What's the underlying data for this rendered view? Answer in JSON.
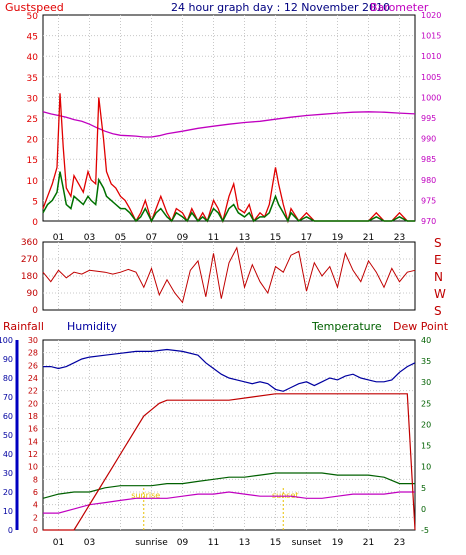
{
  "colors": {
    "background": "#ffffff",
    "frame": "#000000",
    "grid": "#c8c8c8",
    "gust": "#e00000",
    "wind_avg": "#007000",
    "wind_speed": "#0000c0",
    "barometer": "#c000c0",
    "direction": "#c00000",
    "rainfall": "#c00000",
    "humidity": "#0000a0",
    "temperature": "#006000",
    "dewpoint": "#c000c0",
    "sun": "#e8c000",
    "title": "#000080"
  },
  "chart_data": [
    {
      "type": "line",
      "title": "24 hour graph day : 12 November 2010",
      "left_label": "Gustspeed",
      "right_label": "Barometer",
      "x_ticks": [
        "01",
        "03",
        "05",
        "07",
        "09",
        "11",
        "13",
        "15",
        "17",
        "19",
        "21",
        "23"
      ],
      "left_ticks": [
        "0",
        "5",
        "10",
        "15",
        "20",
        "25",
        "30",
        "35",
        "40",
        "45",
        "50"
      ],
      "right_ticks": [
        "970",
        "975",
        "980",
        "985",
        "990",
        "995",
        "1000",
        "1005",
        "1010",
        "1015",
        "1020"
      ],
      "ylim_left": [
        0,
        50
      ],
      "ylim_right": [
        970,
        1020
      ],
      "grid": true,
      "barometer": {
        "x": [
          0,
          0.5,
          1,
          1.5,
          2,
          2.5,
          3,
          3.5,
          4,
          4.5,
          5,
          5.5,
          6,
          6.5,
          7,
          7.5,
          8,
          9,
          10,
          11,
          12,
          13,
          14,
          15,
          16,
          17,
          18,
          19,
          20,
          21,
          22,
          23,
          24
        ],
        "values": [
          996.5,
          996,
          995.6,
          995.2,
          994.6,
          994.2,
          993.5,
          992.6,
          991.8,
          991.2,
          990.8,
          990.7,
          990.6,
          990.4,
          990.4,
          990.7,
          991.2,
          991.8,
          992.5,
          993,
          993.5,
          993.9,
          994.2,
          994.7,
          995.2,
          995.6,
          995.9,
          996.2,
          996.4,
          996.5,
          996.4,
          996.2,
          996
        ]
      },
      "gust": {
        "x": [
          0,
          0.3,
          0.6,
          0.9,
          1.1,
          1.3,
          1.5,
          1.8,
          2,
          2.3,
          2.6,
          2.9,
          3.1,
          3.4,
          3.6,
          3.9,
          4.1,
          4.4,
          4.7,
          5,
          5.3,
          5.6,
          6,
          6.3,
          6.6,
          7,
          7.3,
          7.6,
          8,
          8.3,
          8.6,
          9,
          9.3,
          9.6,
          10,
          10.3,
          10.6,
          11,
          11.3,
          11.6,
          12,
          12.3,
          12.6,
          13,
          13.3,
          13.6,
          14,
          14.3,
          14.6,
          15,
          15.2,
          15.5,
          15.8,
          16,
          16.5,
          17,
          17.5,
          18,
          18.5,
          19,
          19.5,
          20,
          20.5,
          21,
          21.5,
          22,
          22.5,
          23,
          23.5,
          24
        ],
        "values": [
          3,
          6,
          9,
          13,
          31,
          18,
          8,
          6,
          11,
          9,
          7,
          12,
          10,
          9,
          30,
          20,
          12,
          9,
          8,
          6,
          5,
          3,
          0,
          2,
          5,
          0,
          3,
          6,
          2,
          0,
          3,
          2,
          0,
          3,
          0,
          2,
          0,
          5,
          3,
          0,
          6,
          9,
          3,
          2,
          4,
          0,
          2,
          1,
          4,
          13,
          9,
          4,
          0,
          3,
          0,
          2,
          0,
          0,
          0,
          0,
          0,
          0,
          0,
          0,
          2,
          0,
          0,
          2,
          0,
          0
        ]
      },
      "wind_avg": {
        "x": [
          0,
          0.3,
          0.6,
          0.9,
          1.1,
          1.3,
          1.5,
          1.8,
          2,
          2.3,
          2.6,
          2.9,
          3.1,
          3.4,
          3.6,
          3.9,
          4.1,
          4.4,
          4.7,
          5,
          5.3,
          5.6,
          6,
          6.3,
          6.6,
          7,
          7.3,
          7.6,
          8,
          8.3,
          8.6,
          9,
          9.3,
          9.6,
          10,
          10.3,
          10.6,
          11,
          11.3,
          11.6,
          12,
          12.3,
          12.6,
          13,
          13.3,
          13.6,
          14,
          14.3,
          14.6,
          15,
          15.2,
          15.5,
          15.8,
          16,
          16.5,
          17,
          17.5,
          18,
          18.5,
          19,
          19.5,
          20,
          20.5,
          21,
          21.5,
          22,
          22.5,
          23,
          23.5,
          24
        ],
        "values": [
          2,
          4,
          5,
          7,
          12,
          8,
          4,
          3,
          6,
          5,
          4,
          6,
          5,
          4,
          10,
          8,
          6,
          5,
          4,
          3,
          3,
          2,
          0,
          1,
          3,
          0,
          2,
          3,
          1,
          0,
          2,
          1,
          0,
          2,
          0,
          1,
          0,
          3,
          2,
          0,
          3,
          4,
          2,
          1,
          2,
          0,
          1,
          1,
          2,
          6,
          4,
          2,
          0,
          2,
          0,
          1,
          0,
          0,
          0,
          0,
          0,
          0,
          0,
          0,
          1,
          0,
          0,
          1,
          0,
          0
        ]
      }
    },
    {
      "type": "line",
      "right_ticks": [
        "360",
        "270",
        "180",
        "90",
        "0"
      ],
      "right_letters": [
        "S",
        "E",
        "N",
        "W",
        "S"
      ],
      "ylim": [
        0,
        360
      ],
      "grid": true,
      "direction": {
        "x": [
          0,
          0.5,
          1,
          1.5,
          2,
          2.5,
          3,
          3.5,
          4,
          4.5,
          5,
          5.5,
          6,
          6.5,
          7,
          7.5,
          8,
          8.5,
          9,
          9.5,
          10,
          10.5,
          11,
          11.5,
          12,
          12.5,
          13,
          13.5,
          14,
          14.5,
          15,
          15.5,
          16,
          16.5,
          17,
          17.5,
          18,
          18.5,
          19,
          19.5,
          20,
          20.5,
          21,
          21.5,
          22,
          22.5,
          23,
          23.5,
          24
        ],
        "values": [
          200,
          150,
          210,
          170,
          200,
          190,
          210,
          205,
          200,
          190,
          200,
          215,
          200,
          120,
          220,
          80,
          160,
          90,
          40,
          210,
          260,
          70,
          300,
          60,
          250,
          330,
          120,
          240,
          150,
          90,
          230,
          200,
          290,
          310,
          100,
          250,
          180,
          230,
          120,
          300,
          210,
          150,
          260,
          200,
          120,
          220,
          150,
          200,
          210
        ]
      }
    },
    {
      "type": "line",
      "left_labels": [
        "Rainfall",
        "Humidity"
      ],
      "right_labels": [
        "Temperature",
        "Dew Point"
      ],
      "x_ticks": [
        "01",
        "03",
        "sunrise",
        "09",
        "11",
        "13",
        "15",
        "sunset",
        "19",
        "21",
        "23"
      ],
      "humidity_ticks": [
        "0",
        "10",
        "20",
        "30",
        "40",
        "50",
        "60",
        "70",
        "80",
        "90",
        "100"
      ],
      "rain_ticks": [
        "0",
        "2",
        "4",
        "6",
        "8",
        "10",
        "12",
        "14",
        "16",
        "18",
        "20",
        "22",
        "24",
        "26",
        "28",
        "30"
      ],
      "temp_ticks": [
        "-5",
        "0",
        "5",
        "10",
        "15",
        "20",
        "25",
        "30",
        "35",
        "40"
      ],
      "ylim_humidity": [
        0,
        100
      ],
      "ylim_rain": [
        0,
        30
      ],
      "ylim_temp": [
        -5,
        40
      ],
      "grid": true,
      "sun_markers": [
        {
          "label": "sunrise",
          "hour": 6.5
        },
        {
          "label": "sunset",
          "hour": 15.5
        }
      ],
      "humidity": {
        "x": [
          0,
          0.5,
          1,
          1.5,
          2,
          2.5,
          3,
          4,
          5,
          6,
          7,
          8,
          9,
          10,
          10.5,
          11,
          11.5,
          12,
          12.5,
          13,
          13.5,
          14,
          14.5,
          15,
          15.5,
          16,
          16.5,
          17,
          17.5,
          18,
          18.5,
          19,
          19.5,
          20,
          20.5,
          21,
          21.5,
          22,
          22.5,
          23,
          23.5,
          24
        ],
        "values": [
          86,
          86,
          85,
          86,
          88,
          90,
          91,
          92,
          93,
          94,
          94,
          95,
          94,
          92,
          88,
          85,
          82,
          80,
          79,
          78,
          77,
          78,
          77,
          74,
          73,
          75,
          77,
          78,
          76,
          78,
          80,
          79,
          81,
          82,
          80,
          79,
          78,
          78,
          79,
          83,
          86,
          88
        ]
      },
      "rainfall": {
        "x": [
          0,
          2,
          2.5,
          3,
          3.5,
          4,
          4.5,
          5,
          5.5,
          6,
          6.5,
          7,
          7.5,
          8,
          10,
          12,
          13.5,
          15,
          16,
          18,
          20,
          22,
          23.5,
          24
        ],
        "values": [
          0,
          0,
          2,
          4,
          6,
          8,
          10,
          12,
          14,
          16,
          18,
          19,
          20,
          20.5,
          20.5,
          20.5,
          21,
          21.5,
          21.5,
          21.5,
          21.5,
          21.5,
          21.5,
          0
        ]
      },
      "temperature": {
        "x": [
          0,
          1,
          2,
          3,
          4,
          5,
          6,
          7,
          8,
          9,
          10,
          11,
          12,
          13,
          14,
          15,
          16,
          17,
          18,
          19,
          20,
          21,
          22,
          23,
          24
        ],
        "values": [
          2.5,
          3.5,
          4,
          4,
          5,
          5.5,
          5.5,
          5.5,
          6,
          6,
          6.5,
          7,
          7.5,
          7.5,
          8,
          8.5,
          8.5,
          8.5,
          8.5,
          8,
          8,
          8,
          7.5,
          6,
          6
        ]
      },
      "dewpoint": {
        "x": [
          0,
          1,
          2,
          3,
          4,
          5,
          6,
          7,
          8,
          9,
          10,
          11,
          12,
          13,
          14,
          15,
          16,
          17,
          18,
          19,
          20,
          21,
          22,
          23,
          24
        ],
        "values": [
          -1,
          -1,
          0,
          1,
          1.5,
          2,
          2.5,
          2.5,
          2.5,
          3,
          3.5,
          3.5,
          4,
          3.5,
          3,
          3,
          3,
          2.5,
          2.5,
          3,
          3.5,
          3.5,
          3.5,
          4,
          4
        ]
      }
    }
  ]
}
